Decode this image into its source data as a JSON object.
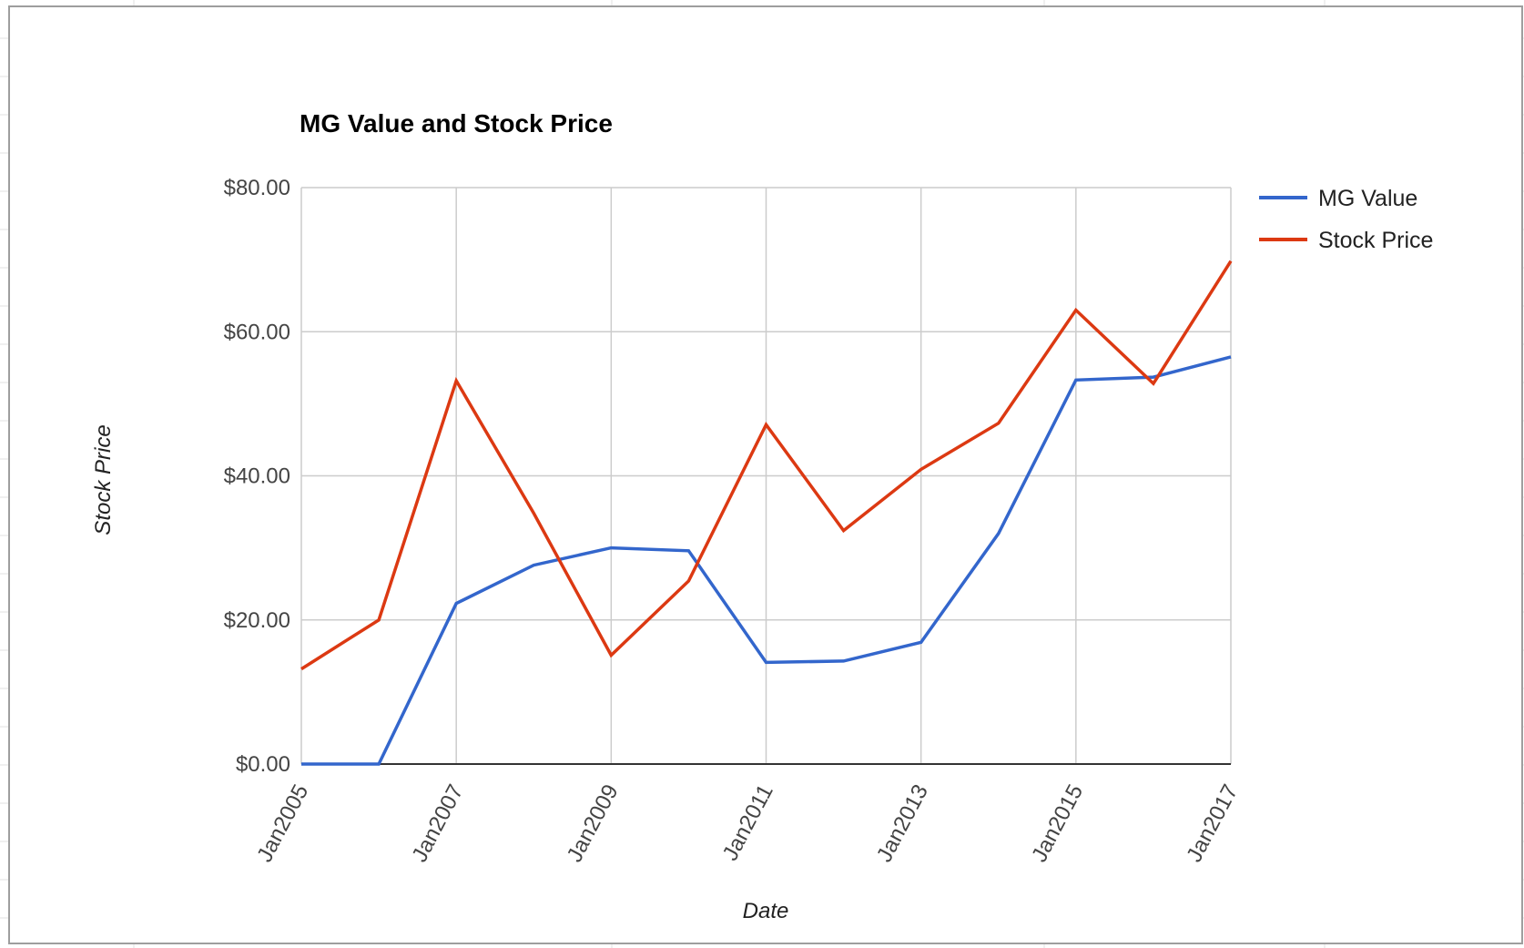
{
  "chart_data": {
    "type": "line",
    "title": "MG Value and Stock Price",
    "xlabel": "Date",
    "ylabel": "Stock Price",
    "x_tick_labels": [
      "Jan2005",
      "Jan2007",
      "Jan2009",
      "Jan2011",
      "Jan2013",
      "Jan2015",
      "Jan2017"
    ],
    "y_tick_labels": [
      "$0.00",
      "$20.00",
      "$40.00",
      "$60.00",
      "$80.00"
    ],
    "y_ticks": [
      0,
      20,
      40,
      60,
      80
    ],
    "x_range": [
      "2005-01",
      "2017-01"
    ],
    "ylim": [
      0,
      80
    ],
    "grid": true,
    "legend_position": "right",
    "x": [
      "2005-01",
      "2006-01",
      "2007-01",
      "2008-01",
      "2009-01",
      "2010-01",
      "2011-01",
      "2012-01",
      "2013-01",
      "2014-01",
      "2015-01",
      "2016-01",
      "2017-01"
    ],
    "series": [
      {
        "name": "MG Value",
        "color": "#3366cc",
        "values": [
          0,
          0,
          22.3,
          27.6,
          30.0,
          29.6,
          14.1,
          14.3,
          16.9,
          32.0,
          53.3,
          53.7,
          56.5
        ]
      },
      {
        "name": "Stock Price",
        "color": "#dc3912",
        "values": [
          13.2,
          20.0,
          53.2,
          34.8,
          15.1,
          25.4,
          47.1,
          32.4,
          40.9,
          47.3,
          63.0,
          52.8,
          69.8
        ]
      }
    ]
  }
}
